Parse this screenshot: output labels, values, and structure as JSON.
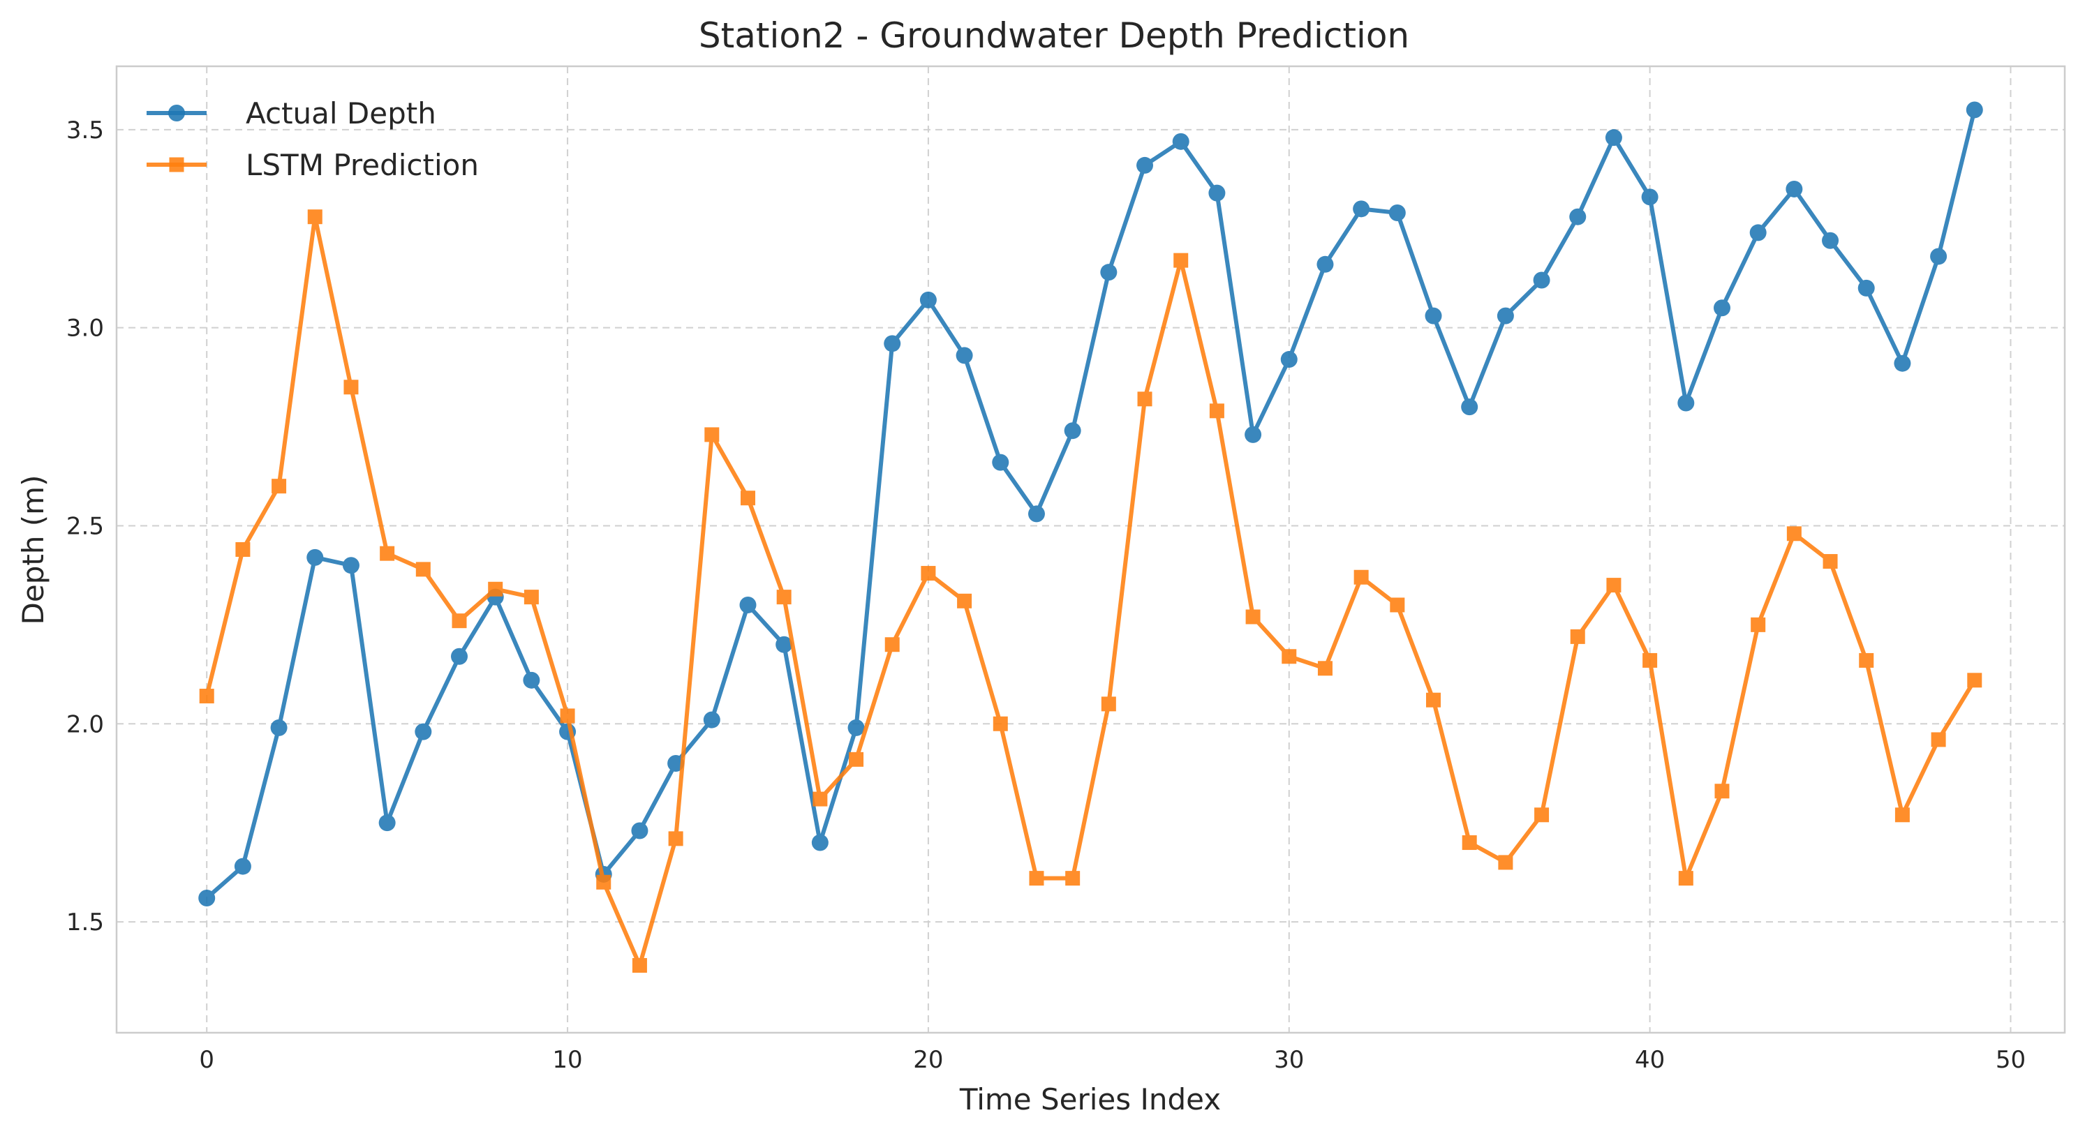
{
  "chart_data": {
    "type": "line",
    "title": "Station2 - Groundwater Depth Prediction",
    "xlabel": "Time Series Index",
    "ylabel": "Depth (m)",
    "xlim": [
      -2.5,
      51.5
    ],
    "ylim": [
      1.22,
      3.66
    ],
    "xticks": [
      0,
      10,
      20,
      30,
      40,
      50
    ],
    "yticks": [
      1.5,
      2.0,
      2.5,
      3.0,
      3.5
    ],
    "ytick_labels": [
      "1.5",
      "2.0",
      "2.5",
      "3.0",
      "3.5"
    ],
    "grid": true,
    "legend_position": "top-left",
    "x": [
      0,
      1,
      2,
      3,
      4,
      5,
      6,
      7,
      8,
      9,
      10,
      11,
      12,
      13,
      14,
      15,
      16,
      17,
      18,
      19,
      20,
      21,
      22,
      23,
      24,
      25,
      26,
      27,
      28,
      29,
      30,
      31,
      32,
      33,
      34,
      35,
      36,
      37,
      38,
      39,
      40,
      41,
      42,
      43,
      44,
      45,
      46,
      47,
      48,
      49
    ],
    "series": [
      {
        "name": "Actual Depth",
        "color": "#1f77b4",
        "marker": "circle",
        "values": [
          1.56,
          1.64,
          1.99,
          2.42,
          2.4,
          1.75,
          1.98,
          2.17,
          2.32,
          2.11,
          1.98,
          1.62,
          1.73,
          1.9,
          2.01,
          2.3,
          2.2,
          1.7,
          1.99,
          2.96,
          3.07,
          2.93,
          2.66,
          2.53,
          2.74,
          3.14,
          3.41,
          3.47,
          3.34,
          2.73,
          2.92,
          3.16,
          3.3,
          3.29,
          3.03,
          2.8,
          3.03,
          3.12,
          3.28,
          3.48,
          3.33,
          2.81,
          3.05,
          3.24,
          3.35,
          3.22,
          3.1,
          2.91,
          3.18,
          3.55
        ]
      },
      {
        "name": "LSTM Prediction",
        "color": "#ff7f0e",
        "marker": "square",
        "values": [
          2.07,
          2.44,
          2.6,
          3.28,
          2.85,
          2.43,
          2.39,
          2.26,
          2.34,
          2.32,
          2.02,
          1.6,
          1.39,
          1.71,
          2.73,
          2.57,
          2.32,
          1.81,
          1.91,
          2.2,
          2.38,
          2.31,
          2.0,
          1.61,
          1.61,
          2.05,
          2.82,
          3.17,
          2.79,
          2.27,
          2.17,
          2.14,
          2.37,
          2.3,
          2.06,
          1.7,
          1.65,
          1.77,
          2.22,
          2.35,
          2.16,
          1.61,
          1.83,
          2.25,
          2.48,
          2.41,
          2.16,
          1.77,
          1.96,
          2.11
        ]
      }
    ]
  }
}
